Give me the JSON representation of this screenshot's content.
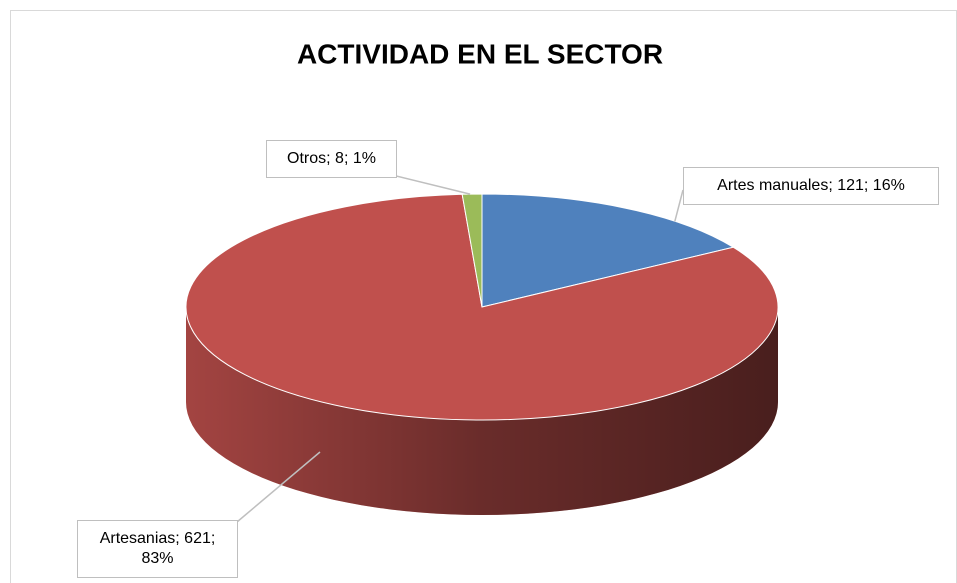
{
  "chart_data": {
    "type": "pie",
    "title": "ACTIVIDAD EN EL SECTOR",
    "values": [
      121,
      621,
      8
    ],
    "value_labels": [
      "Artes manuales; 121; 16%",
      "Artesanias; 621; 83%",
      "Otros; 8; 1%"
    ],
    "colors": [
      "#4f81bd",
      "#c0504d",
      "#9bbb59"
    ],
    "three_d": true
  }
}
